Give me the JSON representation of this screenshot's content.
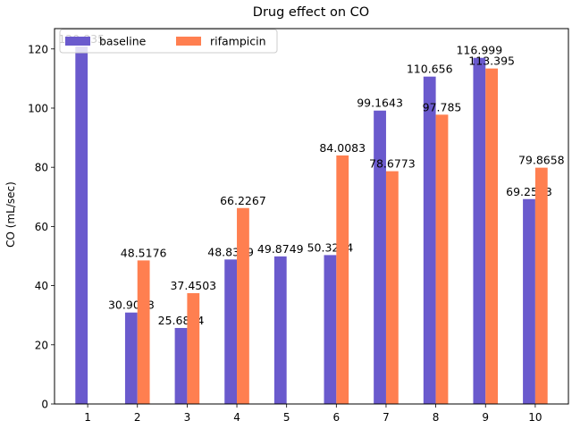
{
  "chart_data": {
    "type": "bar",
    "title": "Drug effect on CO",
    "xlabel": "",
    "ylabel": "CO (mL/sec)",
    "categories": [
      "1",
      "2",
      "3",
      "4",
      "5",
      "6",
      "7",
      "8",
      "9",
      "10"
    ],
    "series": [
      {
        "name": "baseline",
        "color": "#6a5acd",
        "values": [
          120.835,
          30.9028,
          25.6864,
          48.8359,
          49.8749,
          50.3284,
          99.1643,
          110.656,
          116.999,
          69.2533
        ],
        "labels": [
          "120.835",
          "30.9028",
          "25.6864",
          "48.8359",
          "49.8749",
          "50.3284",
          "99.1643",
          "110.656",
          "116.999",
          "69.2533"
        ]
      },
      {
        "name": "rifampicin",
        "color": "#ff7f50",
        "values": [
          null,
          48.5176,
          37.4503,
          66.2267,
          null,
          84.0083,
          78.6773,
          97.785,
          113.395,
          79.8658
        ],
        "labels": [
          null,
          "48.5176",
          "37.4503",
          "66.2267",
          null,
          "84.0083",
          "78.6773",
          "97.785",
          "113.395",
          "79.8658"
        ]
      }
    ],
    "ylim": [
      0,
      126.877
    ],
    "yticks": [
      0,
      20,
      40,
      60,
      80,
      100,
      120
    ],
    "ytick_labels": [
      "0",
      "20",
      "40",
      "60",
      "80",
      "100",
      "120"
    ],
    "grid": false,
    "legend": {
      "placement": "top-left",
      "columns": 2
    }
  }
}
